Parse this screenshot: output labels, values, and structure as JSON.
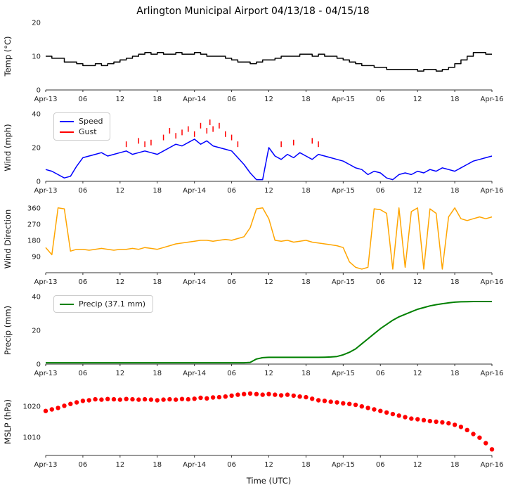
{
  "title": "Arlington Municipal Airport 04/13/18 - 04/15/18",
  "x_axis": {
    "label": "Time (UTC)",
    "lim": [
      0,
      72
    ],
    "ticks": [
      0,
      6,
      12,
      18,
      24,
      30,
      36,
      42,
      48,
      54,
      60,
      66,
      72
    ],
    "tick_labels": [
      "Apr-13",
      "06",
      "12",
      "18",
      "Apr-14",
      "06",
      "12",
      "18",
      "Apr-15",
      "06",
      "12",
      "18",
      "Apr-16"
    ]
  },
  "chart_data": [
    {
      "type": "line",
      "name": "temperature",
      "ylabel": "Temp (°C)",
      "ylim": [
        0,
        20
      ],
      "yticks": [
        0,
        10,
        20
      ],
      "series": [
        {
          "name": "Temp",
          "color": "#000000",
          "style": "step",
          "x_step": 1,
          "y": [
            10,
            9.4,
            9.4,
            8.3,
            8.3,
            7.8,
            7.2,
            7.2,
            7.8,
            7.2,
            7.8,
            8.3,
            8.9,
            9.4,
            10,
            10.6,
            11.1,
            10.6,
            11.1,
            10.6,
            10.6,
            11.1,
            10.6,
            10.6,
            11.1,
            10.6,
            10,
            10,
            10,
            9.4,
            8.9,
            8.3,
            8.3,
            7.8,
            8.3,
            8.9,
            8.9,
            9.4,
            10,
            10,
            10,
            10.6,
            10.6,
            10,
            10.6,
            10,
            10,
            9.4,
            8.9,
            8.3,
            7.8,
            7.2,
            7.2,
            6.7,
            6.7,
            6.1,
            6.1,
            6.1,
            6.1,
            6.1,
            5.6,
            6.1,
            6.1,
            5.6,
            6.1,
            6.7,
            7.8,
            8.9,
            10,
            11.1,
            11.1,
            10.6,
            10.6
          ]
        }
      ]
    },
    {
      "type": "line",
      "name": "wind",
      "ylabel": "Wind (mph)",
      "ylim": [
        0,
        40
      ],
      "yticks": [
        0,
        20,
        40
      ],
      "legend": [
        {
          "label": "Speed",
          "color": "#0000ff"
        },
        {
          "label": "Gust",
          "color": "#ff0000"
        }
      ],
      "series": [
        {
          "name": "Speed",
          "color": "#0000ff",
          "style": "line",
          "x_step": 1,
          "y": [
            7,
            6,
            4,
            2,
            3,
            9,
            14,
            15,
            16,
            17,
            15,
            16,
            17,
            18,
            16,
            17,
            18,
            17,
            16,
            18,
            20,
            22,
            21,
            23,
            25,
            22,
            24,
            21,
            20,
            19,
            18,
            14,
            10,
            5,
            1,
            1,
            20,
            15,
            13,
            16,
            14,
            17,
            15,
            13,
            16,
            15,
            14,
            13,
            12,
            10,
            8,
            7,
            4,
            6,
            5,
            2,
            1,
            4,
            5,
            4,
            6,
            5,
            7,
            6,
            8,
            7,
            6,
            8,
            10,
            12,
            13,
            14,
            15
          ]
        },
        {
          "name": "Gust",
          "color": "#ff0000",
          "style": "vtick",
          "points": [
            [
              13,
              22
            ],
            [
              15,
              24
            ],
            [
              16,
              22
            ],
            [
              17,
              23
            ],
            [
              19,
              26
            ],
            [
              20,
              30
            ],
            [
              21,
              27
            ],
            [
              22,
              29
            ],
            [
              23,
              31
            ],
            [
              24,
              28
            ],
            [
              25,
              33
            ],
            [
              26,
              30
            ],
            [
              26.5,
              35
            ],
            [
              27,
              31
            ],
            [
              28,
              33
            ],
            [
              29,
              28
            ],
            [
              30,
              26
            ],
            [
              31,
              22
            ],
            [
              38,
              22
            ],
            [
              40,
              23
            ],
            [
              43,
              24
            ],
            [
              44,
              22
            ]
          ]
        }
      ]
    },
    {
      "type": "line",
      "name": "wind-direction",
      "ylabel": "Wind Direction",
      "ylim": [
        0,
        375
      ],
      "yticks": [
        90,
        180,
        270,
        360
      ],
      "series": [
        {
          "name": "Direction",
          "color": "#ffa500",
          "style": "line",
          "x_step": 1,
          "y": [
            140,
            100,
            360,
            355,
            120,
            130,
            130,
            125,
            130,
            135,
            130,
            125,
            130,
            130,
            135,
            130,
            140,
            135,
            130,
            140,
            150,
            160,
            165,
            170,
            175,
            180,
            180,
            175,
            180,
            185,
            180,
            190,
            200,
            250,
            355,
            360,
            300,
            180,
            175,
            180,
            170,
            175,
            180,
            170,
            165,
            160,
            155,
            150,
            140,
            60,
            30,
            20,
            30,
            355,
            350,
            330,
            20,
            360,
            30,
            340,
            360,
            20,
            355,
            330,
            20,
            310,
            360,
            300,
            290,
            300,
            310,
            300,
            310
          ]
        }
      ]
    },
    {
      "type": "line",
      "name": "precipitation",
      "ylabel": "Precip (mm)",
      "ylim": [
        0,
        40
      ],
      "yticks": [
        0,
        20,
        40
      ],
      "legend": [
        {
          "label": "Precip (37.1 mm)",
          "color": "#008000"
        }
      ],
      "series": [
        {
          "name": "Precip",
          "color": "#008000",
          "style": "line",
          "width": 2,
          "x_step": 1,
          "y": [
            0.8,
            0.8,
            0.8,
            0.8,
            0.8,
            0.8,
            0.8,
            0.8,
            0.8,
            0.8,
            0.8,
            0.8,
            0.8,
            0.8,
            0.8,
            0.8,
            0.8,
            0.8,
            0.8,
            0.8,
            0.8,
            0.8,
            0.8,
            0.8,
            0.8,
            0.8,
            0.8,
            0.8,
            0.8,
            0.8,
            0.8,
            0.8,
            0.8,
            1,
            3,
            3.8,
            4,
            4,
            4,
            4,
            4,
            4,
            4,
            4,
            4,
            4.1,
            4.2,
            4.5,
            5.5,
            7,
            9,
            12,
            15,
            18,
            21,
            23.5,
            26,
            28,
            29.5,
            31,
            32.5,
            33.5,
            34.5,
            35.2,
            35.8,
            36.3,
            36.7,
            36.9,
            37,
            37.1,
            37.1,
            37.1,
            37.1
          ]
        }
      ]
    },
    {
      "type": "scatter",
      "name": "mslp",
      "ylabel": "MSLP (hPa)",
      "ylim": [
        1004,
        1026
      ],
      "yticks": [
        1010,
        1020
      ],
      "series": [
        {
          "name": "MSLP",
          "color": "#ff0000",
          "style": "scatter",
          "x_step": 1,
          "y": [
            1018.5,
            1019,
            1019.5,
            1020.2,
            1020.8,
            1021.3,
            1021.8,
            1022,
            1022.3,
            1022.2,
            1022.4,
            1022.3,
            1022.2,
            1022.4,
            1022.3,
            1022.2,
            1022.3,
            1022.2,
            1022,
            1022.2,
            1022.3,
            1022.2,
            1022.4,
            1022.3,
            1022.5,
            1022.8,
            1022.6,
            1022.9,
            1023,
            1023.2,
            1023.5,
            1023.8,
            1024,
            1024.2,
            1024,
            1023.8,
            1024,
            1023.8,
            1023.6,
            1023.8,
            1023.5,
            1023.2,
            1023,
            1022.5,
            1022,
            1021.8,
            1021.5,
            1021.3,
            1021,
            1020.8,
            1020.5,
            1020,
            1019.5,
            1019,
            1018.5,
            1018,
            1017.5,
            1017,
            1016.5,
            1016,
            1015.8,
            1015.5,
            1015.2,
            1015,
            1014.8,
            1014.5,
            1014,
            1013.3,
            1012.3,
            1011,
            1009.8,
            1008,
            1006
          ]
        }
      ]
    }
  ]
}
